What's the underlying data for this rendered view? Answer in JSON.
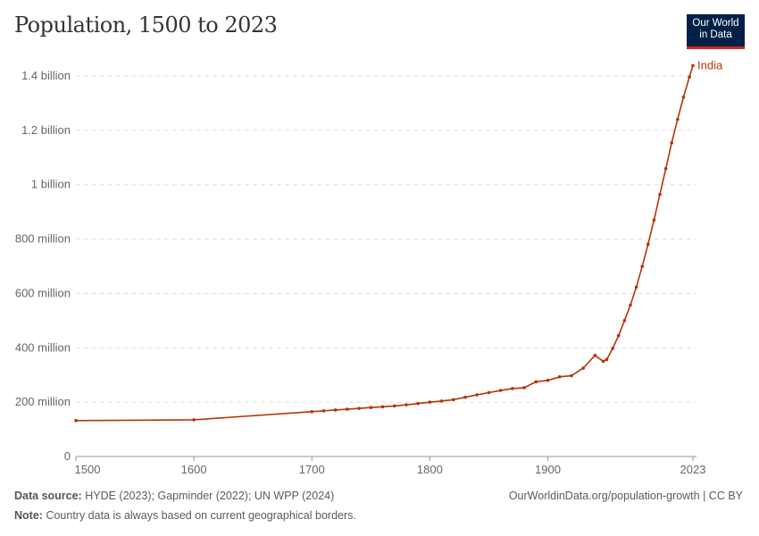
{
  "header": {
    "title": "Population, 1500 to 2023",
    "logo_line1": "Our World",
    "logo_line2": "in Data"
  },
  "colors": {
    "series": "#b13507",
    "logo_bg": "#002147",
    "logo_accent": "#ce261e"
  },
  "chart_data": {
    "type": "line",
    "title": "Population, 1500 to 2023",
    "xlim": [
      1500,
      2023
    ],
    "ylim": [
      0,
      1400000000
    ],
    "grid": "horizontal dashed",
    "x_ticks": [
      1500,
      1600,
      1700,
      1800,
      1900,
      2023
    ],
    "x_tick_labels": [
      "1500",
      "1600",
      "1700",
      "1800",
      "1900",
      "2023"
    ],
    "y_ticks": [
      0,
      200000000,
      400000000,
      600000000,
      800000000,
      1000000000,
      1200000000,
      1400000000
    ],
    "y_tick_labels": [
      "0",
      "200 million",
      "400 million",
      "600 million",
      "800 million",
      "1 billion",
      "1.2 billion",
      "1.4 billion"
    ],
    "series": [
      {
        "name": "India",
        "unit": "millions",
        "x": [
          1500,
          1600,
          1700,
          1710,
          1720,
          1730,
          1740,
          1750,
          1760,
          1770,
          1780,
          1790,
          1800,
          1810,
          1820,
          1830,
          1840,
          1850,
          1860,
          1870,
          1880,
          1890,
          1900,
          1910,
          1920,
          1930,
          1940,
          1947,
          1950,
          1955,
          1960,
          1965,
          1970,
          1975,
          1980,
          1985,
          1990,
          1995,
          2000,
          2005,
          2010,
          2015,
          2020,
          2023
        ],
        "y": [
          132,
          135,
          165,
          168,
          171,
          174,
          177,
          180,
          183,
          186,
          190,
          195,
          200,
          204,
          209,
          218,
          227,
          235,
          243,
          250,
          253,
          275,
          280,
          293,
          297,
          325,
          372,
          350,
          357,
          398,
          445,
          500,
          557,
          623,
          699,
          781,
          870,
          964,
          1059,
          1154,
          1240,
          1322,
          1396,
          1438
        ]
      }
    ]
  },
  "footer": {
    "source_label": "Data source:",
    "source": "HYDE (2023); Gapminder (2022); UN WPP (2024)",
    "link": "OurWorldinData.org/population-growth | CC BY",
    "note_label": "Note:",
    "note": "Country data is always based on current geographical borders."
  }
}
